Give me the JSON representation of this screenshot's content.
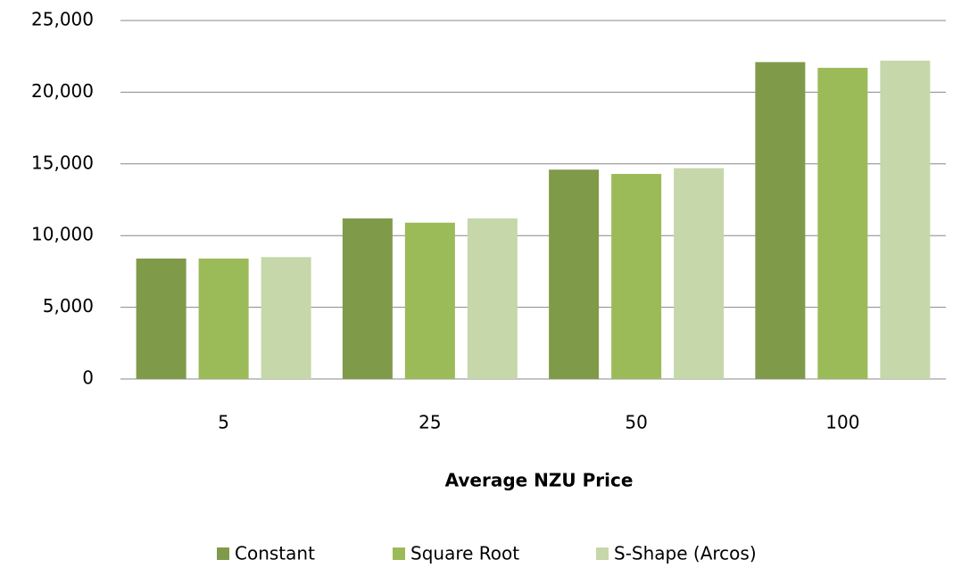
{
  "chart_data": {
    "type": "bar",
    "x_label": "Average NZU Price",
    "categories": [
      "5",
      "25",
      "50",
      "100"
    ],
    "series": [
      {
        "name": "Constant",
        "color": "#7f9b4a",
        "values": [
          8400,
          11200,
          14600,
          22100
        ]
      },
      {
        "name": "Square Root",
        "color": "#9bbb59",
        "values": [
          8400,
          10900,
          14300,
          21700
        ]
      },
      {
        "name": "S-Shape (Arcos)",
        "color": "#c6d7aa",
        "values": [
          8500,
          11200,
          14700,
          22200
        ]
      }
    ],
    "ylim": [
      0,
      25000
    ],
    "yticks": [
      0,
      {
        "value": 5000,
        "label": "5,000"
      },
      {
        "value": 10000,
        "label": "10,000"
      },
      {
        "value": 15000,
        "label": "15,000"
      },
      {
        "value": 20000,
        "label": "20,000"
      },
      {
        "value": 25000,
        "label": "25,000"
      }
    ],
    "grid": true,
    "legend": "bottom"
  }
}
